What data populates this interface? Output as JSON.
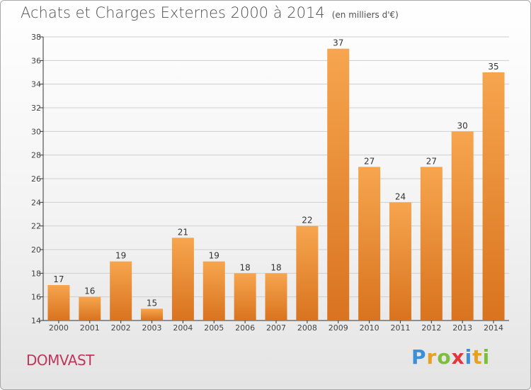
{
  "title": "Achats et Charges Externes 2000 à 2014",
  "unit": "(en milliers d'€)",
  "commune": "DOMVAST",
  "logo": {
    "text": "Proxiti",
    "letters": [
      {
        "ch": "P",
        "color": "#3a8fd9"
      },
      {
        "ch": "r",
        "color": "#e8a020"
      },
      {
        "ch": "o",
        "color": "#7bbf3c"
      },
      {
        "ch": "x",
        "color": "#e2363c"
      },
      {
        "ch": "i",
        "color": "#3a8fd9"
      },
      {
        "ch": "t",
        "color": "#e8a020"
      },
      {
        "ch": "i",
        "color": "#7bbf3c"
      }
    ]
  },
  "colors": {
    "bar_light": "#f6a54e",
    "bar_dark": "#d9731f",
    "grid": "#cfcfcf",
    "axis": "#333333"
  },
  "chart_data": {
    "type": "bar",
    "categories": [
      "2000",
      "2001",
      "2002",
      "2003",
      "2004",
      "2005",
      "2006",
      "2007",
      "2008",
      "2009",
      "2010",
      "2011",
      "2012",
      "2013",
      "2014"
    ],
    "values": [
      17,
      16,
      19,
      15,
      21,
      19,
      18,
      18,
      22,
      37,
      27,
      24,
      27,
      30,
      35
    ],
    "ylim": [
      14,
      38
    ],
    "yticks": [
      14,
      16,
      18,
      20,
      22,
      24,
      26,
      28,
      30,
      32,
      34,
      36,
      38
    ],
    "grid": true,
    "data_labels": true
  }
}
